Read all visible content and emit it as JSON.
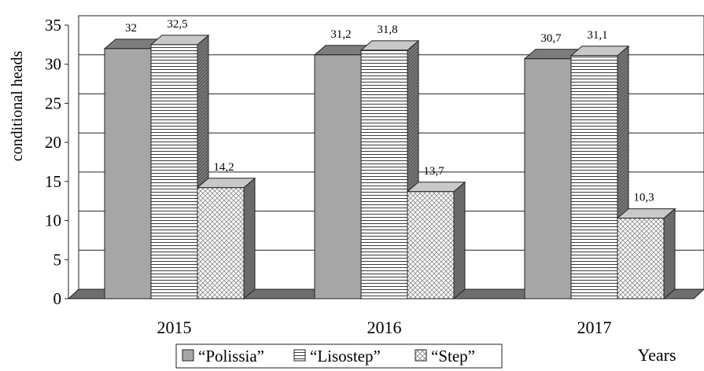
{
  "chart_data": {
    "type": "bar",
    "title": "",
    "ylabel": "conditional heads",
    "xlabel": "Years",
    "ylim": [
      0,
      35
    ],
    "yticks": [
      "0",
      "5",
      "10",
      "15",
      "20",
      "25",
      "30",
      "35"
    ],
    "categories": [
      "2015",
      "2016",
      "2017"
    ],
    "grid": true,
    "legend_position": "bottom",
    "series": [
      {
        "name": "“Polissia”",
        "values": [
          32,
          31.2,
          30.7
        ],
        "labels": [
          "32",
          "31,2",
          "30,7"
        ],
        "color": "#a6a6a6",
        "pattern": "solid"
      },
      {
        "name": "“Lisostep”",
        "values": [
          32.5,
          31.8,
          31.1
        ],
        "labels": [
          "32,5",
          "31,8",
          "31,1"
        ],
        "color": "#ffffff",
        "pattern": "horizontal-lines"
      },
      {
        "name": "“Step”",
        "values": [
          14.2,
          13.7,
          10.3
        ],
        "labels": [
          "14,2",
          "13,7",
          "10,3"
        ],
        "color": "#ffffff",
        "pattern": "checker"
      }
    ]
  }
}
